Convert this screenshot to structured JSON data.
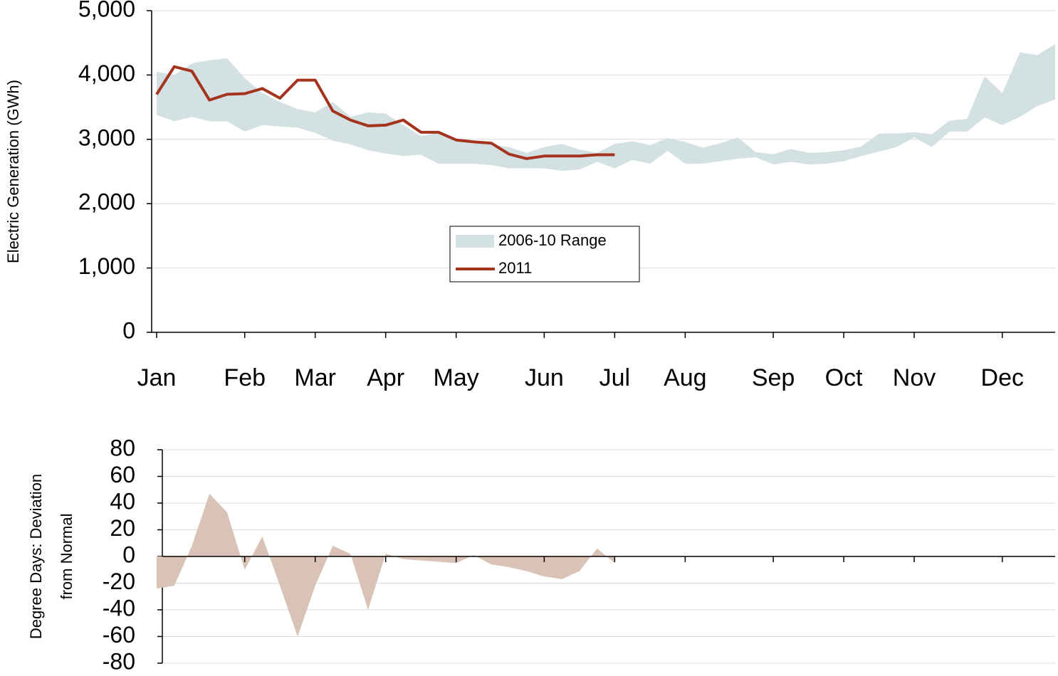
{
  "chart_data": [
    {
      "type": "line",
      "ylabel": "Electric Generation (GWh)",
      "categories": [
        "Jan",
        null,
        null,
        null,
        null,
        "Feb",
        null,
        null,
        null,
        "Mar",
        null,
        null,
        null,
        "Apr",
        null,
        null,
        null,
        "May",
        null,
        null,
        null,
        null,
        "Jun",
        null,
        null,
        null,
        "Jul",
        null,
        null,
        null,
        "Aug",
        null,
        null,
        null,
        null,
        "Sep",
        null,
        null,
        null,
        "Oct",
        null,
        null,
        null,
        "Nov",
        null,
        null,
        null,
        null,
        "Dec",
        null,
        null,
        null
      ],
      "ylim": [
        0,
        5000
      ],
      "yticks": [
        0,
        {
          "value": 1000,
          "label": "1,000"
        },
        {
          "value": 2000,
          "label": "2,000"
        },
        {
          "value": 3000,
          "label": "3,000"
        },
        {
          "value": 4000,
          "label": "4,000"
        },
        {
          "value": 5000,
          "label": "5,000"
        }
      ],
      "grid": true,
      "legend": "center",
      "series": [
        {
          "name": "2006-10 Range",
          "type": "range",
          "color": "#d3e1e3",
          "low": [
            3380,
            3280,
            3350,
            3280,
            3280,
            3120,
            3220,
            3200,
            3180,
            3100,
            2980,
            2920,
            2830,
            2780,
            2740,
            2760,
            2620,
            2620,
            2620,
            2600,
            2550,
            2550,
            2550,
            2510,
            2530,
            2650,
            2550,
            2680,
            2620,
            2820,
            2620,
            2620,
            2660,
            2700,
            2720,
            2610,
            2650,
            2610,
            2620,
            2660,
            2740,
            2810,
            2880,
            3030,
            2880,
            3120,
            3120,
            3340,
            3220,
            3350,
            3520,
            3620
          ],
          "values": [
            4050,
            4000,
            4180,
            4230,
            4260,
            3950,
            3720,
            3580,
            3470,
            3420,
            3580,
            3350,
            3420,
            3400,
            3220,
            3050,
            3100,
            2980,
            2940,
            2920,
            2880,
            2790,
            2880,
            2930,
            2840,
            2790,
            2930,
            2970,
            2910,
            3020,
            2960,
            2870,
            2940,
            3030,
            2800,
            2770,
            2850,
            2790,
            2800,
            2830,
            2890,
            3090,
            3090,
            3110,
            3080,
            3290,
            3320,
            3980,
            3720,
            4350,
            4310,
            4480
          ]
        },
        {
          "name": "2011",
          "color": "#a5341f",
          "values": [
            3700,
            4130,
            4060,
            3610,
            3700,
            3710,
            3790,
            3640,
            3920,
            3920,
            3440,
            3300,
            3210,
            3220,
            3300,
            3110,
            3110,
            2990,
            2960,
            2940,
            2770,
            2700,
            2740,
            2740,
            2740,
            2760,
            2760,
            null,
            null,
            null,
            null,
            null,
            null,
            null,
            null,
            null,
            null,
            null,
            null,
            null,
            null,
            null,
            null,
            null,
            null,
            null,
            null,
            null,
            null,
            null,
            null,
            null
          ]
        }
      ]
    },
    {
      "type": "area",
      "ylabel": [
        "Degree Days: Deviation",
        "from Normal"
      ],
      "ylim": [
        -80,
        80
      ],
      "yticks": [
        -80,
        -60,
        -40,
        -20,
        0,
        20,
        40,
        60,
        80
      ],
      "grid": true,
      "color": "#d9c2b6",
      "values": [
        -24,
        -22,
        8,
        47,
        33,
        -10,
        15,
        -22,
        -60,
        -22,
        8,
        2,
        -40,
        2,
        -2,
        -3,
        -4,
        -5,
        1,
        -6,
        -8,
        -11,
        -15,
        -17,
        -11,
        6,
        -5
      ]
    }
  ]
}
